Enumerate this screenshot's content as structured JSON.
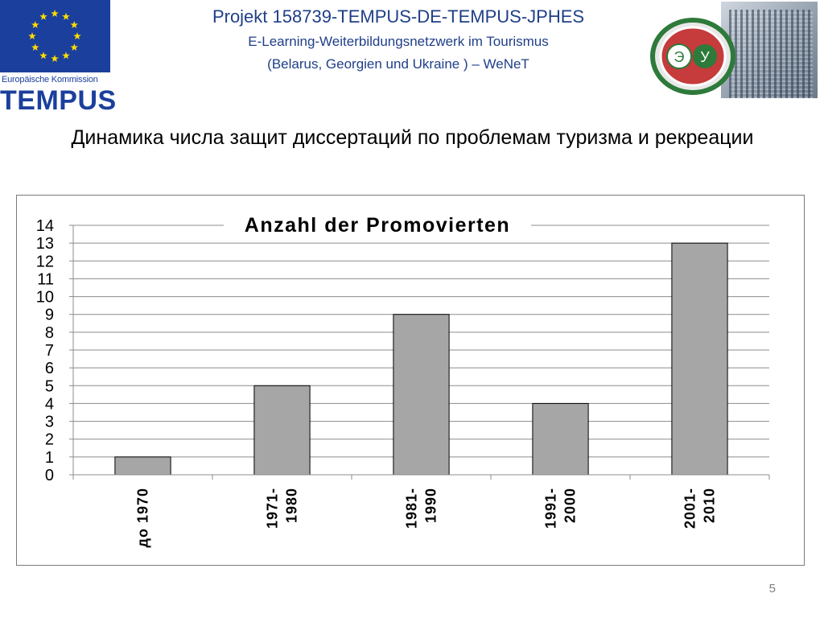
{
  "logo": {
    "caption": "Europäische Kommission",
    "program": "TEMPUS"
  },
  "header": {
    "line1": "Projekt 158739-TEMPUS-DE-TEMPUS-JPHES",
    "line2": "E-Learning-Weiterbildungsnetzwerk im Tourismus",
    "line3": "(Belarus, Georgien und Ukraine ) – WeNeT"
  },
  "uni_logo": {
    "letters": [
      "Э",
      "У"
    ]
  },
  "slide_title": "Динамика числа защит диссертаций по проблемам туризма и рекреации",
  "page_number": "5",
  "colors": {
    "bar_fill": "#a6a6a6",
    "flag": "#1b3f9c",
    "header_text": "#1f3f88"
  },
  "chart_data": {
    "type": "bar",
    "title": "Anzahl der Promovierten",
    "categories": [
      "до 1970",
      "1971-\n1980",
      "1981-\n1990",
      "1991-\n2000",
      "2001-\n2010"
    ],
    "values": [
      1,
      5,
      9,
      4,
      13
    ],
    "ylim": [
      0,
      14
    ],
    "yticks": [
      0,
      1,
      2,
      3,
      4,
      5,
      6,
      7,
      8,
      9,
      10,
      11,
      12,
      13,
      14
    ],
    "grid": true,
    "legend": "none",
    "xlabel_rotation": "vertical"
  }
}
